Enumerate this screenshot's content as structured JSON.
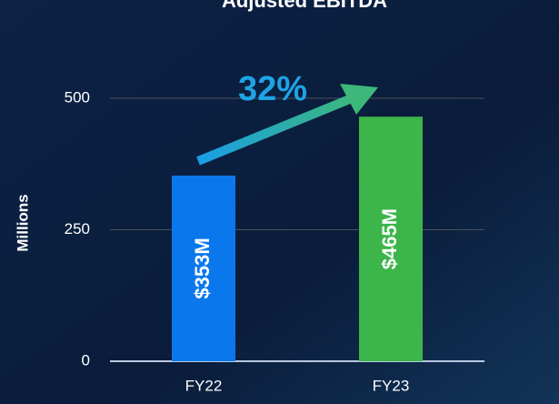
{
  "chart_data": {
    "type": "bar",
    "title": "Adjusted EBITDA",
    "y_label": "Millions",
    "categories": [
      "FY22",
      "FY23"
    ],
    "values": [
      353,
      465
    ],
    "value_labels": [
      "$353M",
      "$465M"
    ],
    "colors": [
      "#0a78ec",
      "#3cb54a"
    ],
    "annotation": "32%",
    "ylim": [
      0,
      500
    ],
    "yticks": [
      0,
      250,
      500
    ],
    "grid": true
  }
}
